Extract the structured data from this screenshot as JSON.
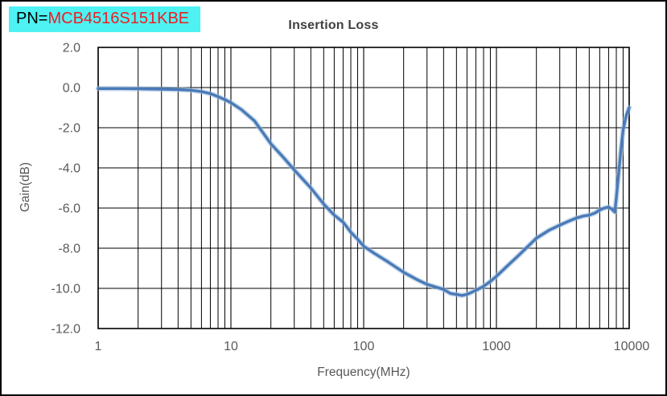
{
  "window": {
    "background_color": "#ffffff",
    "border_color": "#000000"
  },
  "header": {
    "title": "Insertion Loss",
    "pn_label": {
      "prefix": "PN=",
      "part_number": "MCB4516S151KBE",
      "background_color": "#4ef2f2",
      "prefix_color": "#000000",
      "part_color": "#ed1c24"
    }
  },
  "chart_data": {
    "type": "line",
    "title": "Insertion Loss",
    "xlabel": "Frequency(MHz)",
    "ylabel": "Gain(dB)",
    "x_scale": "log",
    "xlim": [
      1,
      10000
    ],
    "ylim": [
      -12.0,
      2.0
    ],
    "x_tick_values": [
      1,
      10,
      100,
      1000,
      10000
    ],
    "x_tick_labels": [
      "1",
      "10",
      "100",
      "1000",
      "10000"
    ],
    "y_tick_values": [
      2,
      0,
      -2,
      -4,
      -6,
      -8,
      -10,
      -12
    ],
    "y_tick_labels": [
      "2.0",
      "0.0",
      "-2.0",
      "-4.0",
      "-6.0",
      "-8.0",
      "-10.0",
      "-12.0"
    ],
    "grid": {
      "show": true,
      "color": "#000000",
      "x_minor_log": true,
      "y_interval": 2
    },
    "legend": "none",
    "series": [
      {
        "name": "Insertion Loss",
        "color": "#4a7ab8",
        "halo_color": "#9fbddd",
        "points": [
          [
            1,
            -0.05
          ],
          [
            1.5,
            -0.05
          ],
          [
            2,
            -0.06
          ],
          [
            3,
            -0.08
          ],
          [
            4,
            -0.1
          ],
          [
            5,
            -0.13
          ],
          [
            6,
            -0.2
          ],
          [
            7,
            -0.3
          ],
          [
            8,
            -0.45
          ],
          [
            9,
            -0.6
          ],
          [
            10,
            -0.75
          ],
          [
            12,
            -1.1
          ],
          [
            15,
            -1.65
          ],
          [
            20,
            -2.8
          ],
          [
            25,
            -3.5
          ],
          [
            30,
            -4.1
          ],
          [
            40,
            -5.0
          ],
          [
            50,
            -5.8
          ],
          [
            60,
            -6.35
          ],
          [
            70,
            -6.7
          ],
          [
            80,
            -7.2
          ],
          [
            90,
            -7.55
          ],
          [
            100,
            -7.9
          ],
          [
            120,
            -8.25
          ],
          [
            150,
            -8.65
          ],
          [
            200,
            -9.2
          ],
          [
            250,
            -9.55
          ],
          [
            300,
            -9.8
          ],
          [
            400,
            -10.05
          ],
          [
            450,
            -10.25
          ],
          [
            500,
            -10.3
          ],
          [
            550,
            -10.35
          ],
          [
            600,
            -10.3
          ],
          [
            700,
            -10.1
          ],
          [
            800,
            -9.9
          ],
          [
            900,
            -9.65
          ],
          [
            1000,
            -9.4
          ],
          [
            1200,
            -8.9
          ],
          [
            1500,
            -8.3
          ],
          [
            2000,
            -7.5
          ],
          [
            2500,
            -7.1
          ],
          [
            3000,
            -6.85
          ],
          [
            3500,
            -6.65
          ],
          [
            4000,
            -6.5
          ],
          [
            4500,
            -6.4
          ],
          [
            5000,
            -6.35
          ],
          [
            5500,
            -6.25
          ],
          [
            6000,
            -6.1
          ],
          [
            6500,
            -6.0
          ],
          [
            7000,
            -5.95
          ],
          [
            7400,
            -6.05
          ],
          [
            7800,
            -6.2
          ],
          [
            8000,
            -5.5
          ],
          [
            8300,
            -4.4
          ],
          [
            8700,
            -3.0
          ],
          [
            9000,
            -2.1
          ],
          [
            9500,
            -1.4
          ],
          [
            10000,
            -1.0
          ]
        ]
      }
    ]
  }
}
